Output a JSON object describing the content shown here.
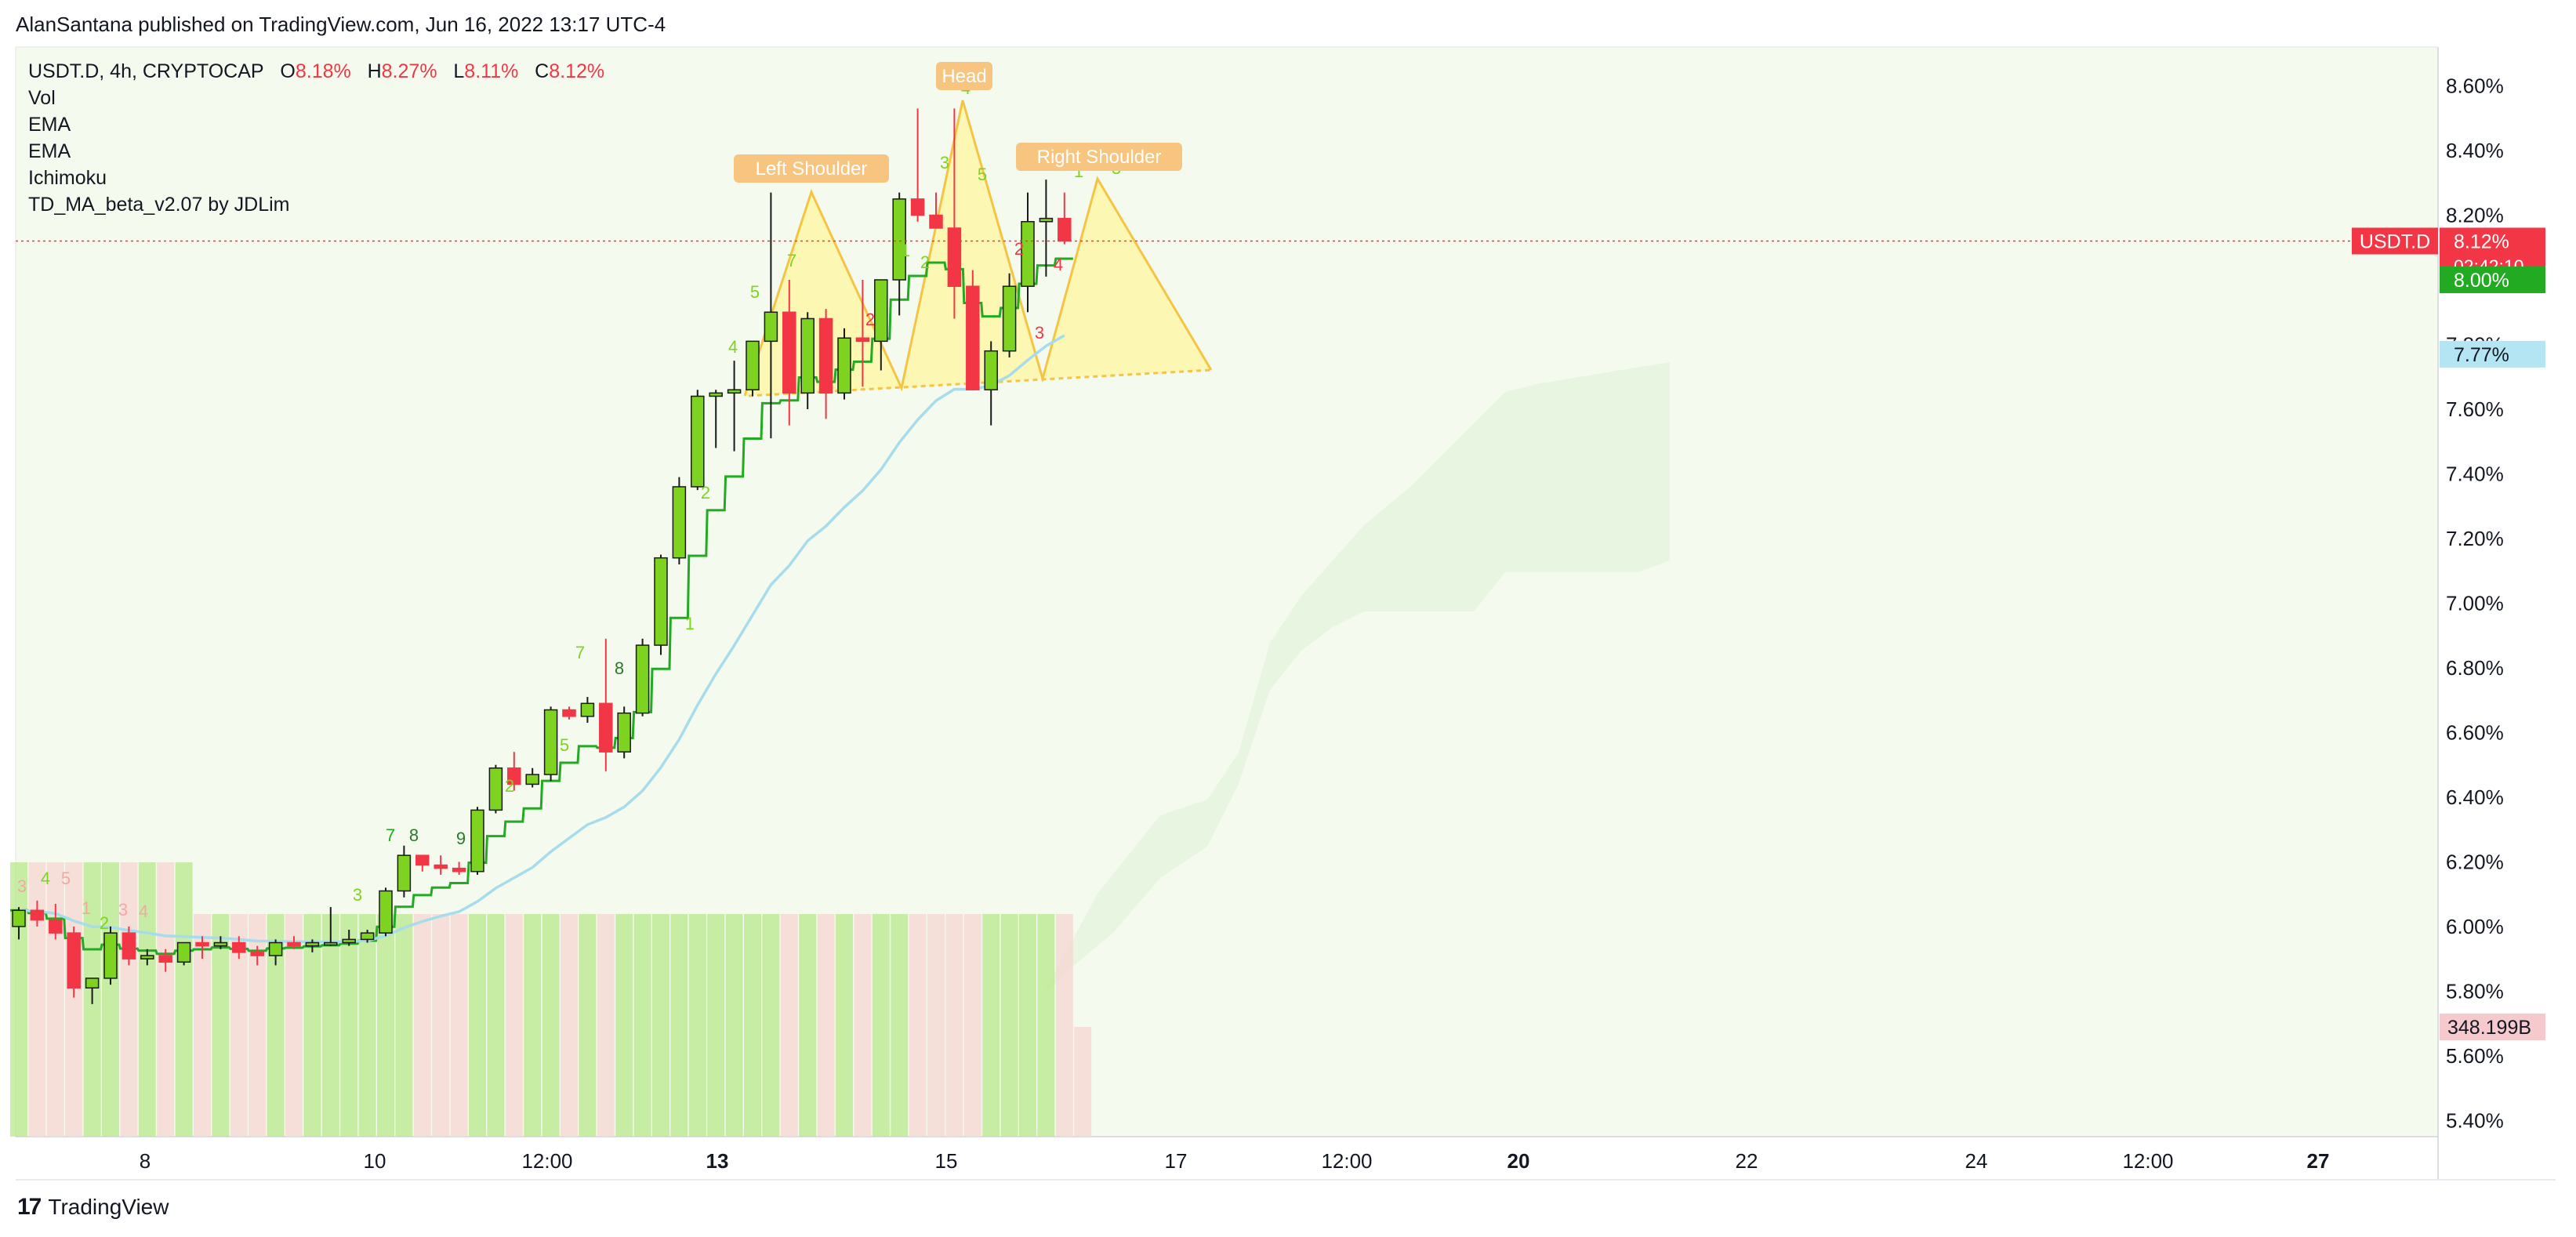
{
  "header": {
    "published": "AlanSantana published on TradingView.com, Jun 16, 2022 13:17 UTC-4"
  },
  "legend": {
    "symbol": "USDT.D, 4h, CRYPTOCAP",
    "o_label": "O",
    "o_value": "8.18%",
    "h_label": "H",
    "h_value": "8.27%",
    "l_label": "L",
    "l_value": "8.11%",
    "c_label": "C",
    "c_value": "8.12%",
    "indicators": [
      "Vol",
      "EMA",
      "EMA",
      "Ichimoku",
      "TD_MA_beta_v2.07 by JDLim"
    ]
  },
  "footer": {
    "brand": "TradingView"
  },
  "colors": {
    "up": "#7ed321",
    "down": "#f23645",
    "ema_fast": "#22aa22",
    "ema_slow": "#a7dcec",
    "cloud": "#e5f3dd",
    "pattern": "#fff59d",
    "pattern_label": "#f7c57f"
  },
  "chart_data": {
    "type": "candlestick",
    "ylim": [
      5.35,
      8.72
    ],
    "y_ticks": [
      "8.60%",
      "8.40%",
      "8.20%",
      "8.00%",
      "7.80%",
      "7.60%",
      "7.40%",
      "7.20%",
      "7.00%",
      "6.80%",
      "6.60%",
      "6.40%",
      "6.20%",
      "6.00%",
      "5.80%",
      "5.60%",
      "5.40%"
    ],
    "x_ticks": [
      "8",
      "10",
      "12:00",
      "13",
      "15",
      "17",
      "12:00",
      "20",
      "22",
      "24",
      "12:00",
      "27"
    ],
    "x_ticks_bold": [
      "13",
      "20",
      "27"
    ],
    "candles": [
      [
        6.0,
        6.06,
        5.96,
        6.05
      ],
      [
        6.05,
        6.08,
        6.0,
        6.02
      ],
      [
        6.02,
        6.07,
        5.96,
        5.98
      ],
      [
        5.98,
        6.0,
        5.78,
        5.81
      ],
      [
        5.81,
        5.84,
        5.76,
        5.84
      ],
      [
        5.84,
        6.0,
        5.82,
        5.98
      ],
      [
        5.98,
        6.0,
        5.88,
        5.9
      ],
      [
        5.9,
        5.93,
        5.88,
        5.91
      ],
      [
        5.91,
        5.93,
        5.86,
        5.89
      ],
      [
        5.89,
        5.95,
        5.88,
        5.95
      ],
      [
        5.95,
        5.97,
        5.9,
        5.94
      ],
      [
        5.94,
        5.97,
        5.93,
        5.95
      ],
      [
        5.95,
        5.97,
        5.9,
        5.92
      ],
      [
        5.92,
        5.94,
        5.88,
        5.91
      ],
      [
        5.91,
        5.96,
        5.88,
        5.95
      ],
      [
        5.95,
        5.97,
        5.93,
        5.94
      ],
      [
        5.94,
        5.96,
        5.92,
        5.95
      ],
      [
        5.95,
        6.06,
        5.94,
        5.95
      ],
      [
        5.95,
        5.99,
        5.94,
        5.96
      ],
      [
        5.96,
        5.99,
        5.95,
        5.98
      ],
      [
        5.98,
        6.12,
        5.97,
        6.11
      ],
      [
        6.11,
        6.25,
        6.09,
        6.22
      ],
      [
        6.22,
        6.22,
        6.17,
        6.19
      ],
      [
        6.19,
        6.22,
        6.16,
        6.18
      ],
      [
        6.18,
        6.2,
        6.16,
        6.17
      ],
      [
        6.17,
        6.37,
        6.16,
        6.36
      ],
      [
        6.36,
        6.5,
        6.35,
        6.49
      ],
      [
        6.49,
        6.54,
        6.42,
        6.44
      ],
      [
        6.44,
        6.49,
        6.43,
        6.47
      ],
      [
        6.47,
        6.68,
        6.45,
        6.67
      ],
      [
        6.67,
        6.68,
        6.64,
        6.65
      ],
      [
        6.65,
        6.71,
        6.63,
        6.69
      ],
      [
        6.69,
        6.89,
        6.48,
        6.54
      ],
      [
        6.54,
        6.68,
        6.52,
        6.66
      ],
      [
        6.66,
        6.89,
        6.65,
        6.87
      ],
      [
        6.87,
        7.15,
        6.84,
        7.14
      ],
      [
        7.14,
        7.39,
        7.12,
        7.36
      ],
      [
        7.36,
        7.66,
        7.35,
        7.64
      ],
      [
        7.64,
        7.66,
        7.48,
        7.65
      ],
      [
        7.65,
        7.75,
        7.47,
        7.66
      ],
      [
        7.66,
        7.8,
        7.64,
        7.81
      ],
      [
        7.81,
        8.27,
        7.51,
        7.9
      ],
      [
        7.9,
        8.0,
        7.55,
        7.65
      ],
      [
        7.65,
        7.9,
        7.6,
        7.88
      ],
      [
        7.88,
        7.91,
        7.57,
        7.65
      ],
      [
        7.65,
        7.85,
        7.63,
        7.82
      ],
      [
        7.82,
        8.0,
        7.67,
        7.81
      ],
      [
        7.81,
        8.0,
        7.72,
        8.0
      ],
      [
        8.0,
        8.27,
        7.89,
        8.25
      ],
      [
        8.25,
        8.53,
        8.18,
        8.2
      ],
      [
        8.2,
        8.27,
        8.16,
        8.16
      ],
      [
        8.16,
        8.53,
        7.88,
        7.98
      ],
      [
        7.98,
        8.03,
        7.66,
        7.66
      ],
      [
        7.66,
        7.81,
        7.55,
        7.78
      ],
      [
        7.78,
        8.02,
        7.76,
        7.98
      ],
      [
        7.98,
        8.27,
        7.9,
        8.18
      ],
      [
        8.18,
        8.31,
        8.01,
        8.19
      ],
      [
        8.19,
        8.27,
        8.11,
        8.12
      ]
    ],
    "volume_colors": "green_red_mixed",
    "last_price": {
      "label": "USDT.D",
      "value": "8.12%",
      "countdown": "02:42:10"
    },
    "ema_label": "8.00%",
    "ema2_label": "7.77%",
    "volume_label": "348.199B",
    "pattern": {
      "type": "head_and_shoulders",
      "labels": [
        "Left Shoulder",
        "Head",
        "Right Shoulder"
      ]
    }
  }
}
